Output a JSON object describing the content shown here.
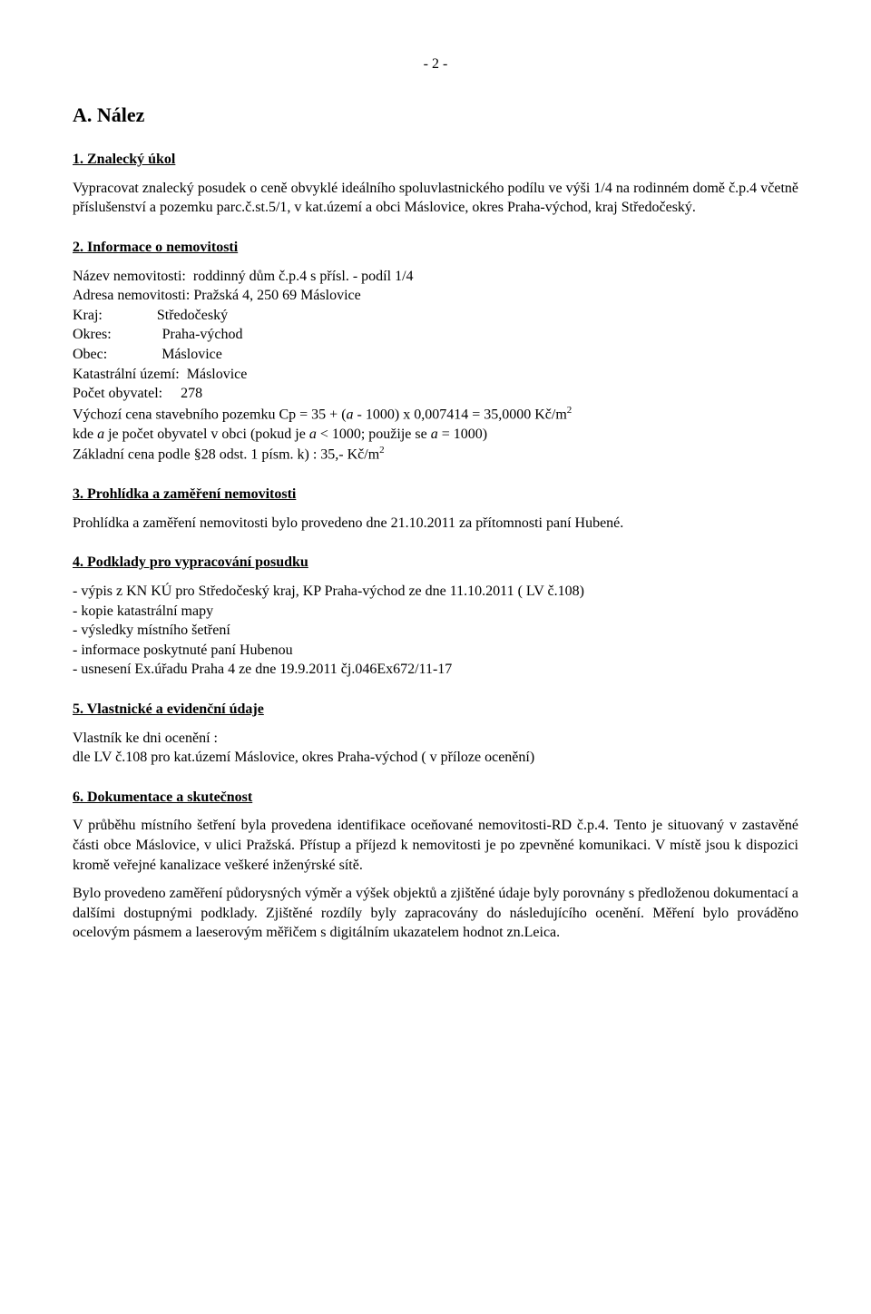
{
  "pageNumber": "- 2 -",
  "header": "A. Nález",
  "s1": {
    "title": "1. Znalecký úkol",
    "para": "Vypracovat znalecký posudek o ceně obvyklé ideálního spoluvlastnického podílu ve výši 1/4 na rodinném domě č.p.4 včetně příslušenství a pozemku parc.č.st.5/1, v kat.území a obci Máslovice, okres Praha-východ, kraj Středočeský."
  },
  "s2": {
    "title": "2. Informace o nemovitosti",
    "rows": {
      "nazev": "Název nemovitosti:  roddinný dům č.p.4 s přísl. - podíl 1/4",
      "adresa": "Adresa nemovitosti: Pražská 4, 250 69 Máslovice",
      "kraj": "Kraj:               Středočeský",
      "okres": "Okres:              Praha-východ",
      "obec": "Obec:               Máslovice",
      "katuz": "Katastrální území:  Máslovice",
      "pocet": "Počet obyvatel:     278"
    },
    "calc1a": "Výchozí cena stavebního pozemku Cp = 35 + (",
    "calc1b": " - 1000) x 0,007414 = 35,0000 Kč/m",
    "calc1_italic": "a",
    "calc1_sup": "2",
    "calc2a": "kde ",
    "calc2b": " je počet obyvatel v obci (pokud je ",
    "calc2c": " < 1000; použije se ",
    "calc2d": " = 1000)",
    "calc2_it1": "a",
    "calc2_it2": "a",
    "calc2_it3": "a",
    "calc3": "Základní cena podle §28 odst. 1 písm. k) : 35,- Kč/m",
    "calc3_sup": "2"
  },
  "s3": {
    "title": "3. Prohlídka a zaměření nemovitosti",
    "para": "Prohlídka a zaměření nemovitosti bylo provedeno dne 21.10.2011 za přítomnosti paní Hubené."
  },
  "s4": {
    "title": "4. Podklady pro vypracování posudku",
    "items": [
      "- výpis z KN KÚ pro Středočeský kraj, KP Praha-východ ze dne 11.10.2011 ( LV č.108)",
      "- kopie katastrální mapy",
      "- výsledky místního šetření",
      "- informace poskytnuté paní Hubenou",
      "- usnesení Ex.úřadu Praha 4 ze dne 19.9.2011 čj.046Ex672/11-17"
    ]
  },
  "s5": {
    "title": "5. Vlastnické a evidenční údaje",
    "l1": "Vlastník ke dni ocenění :",
    "l2": "dle LV č.108 pro kat.území Máslovice, okres Praha-východ ( v příloze ocenění)"
  },
  "s6": {
    "title": "6. Dokumentace a skutečnost",
    "p1": "V průběhu místního šetření byla provedena identifikace oceňované nemovitosti-RD č.p.4. Tento je situovaný v zastavěné části obce Máslovice, v ulici Pražská. Přístup a příjezd k nemovitosti je po zpevněné komunikaci. V místě jsou k dispozici kromě veřejné kanalizace veškeré inženýrské sítě.",
    "p2": "Bylo provedeno zaměření půdorysných výměr a výšek objektů a zjištěné údaje byly porovnány s předloženou dokumentací a dalšími dostupnými podklady. Zjištěné rozdíly byly zapracovány do následujícího ocenění. Měření bylo prováděno ocelovým pásmem a laeserovým měřičem s digitálním ukazatelem hodnot zn.Leica."
  }
}
